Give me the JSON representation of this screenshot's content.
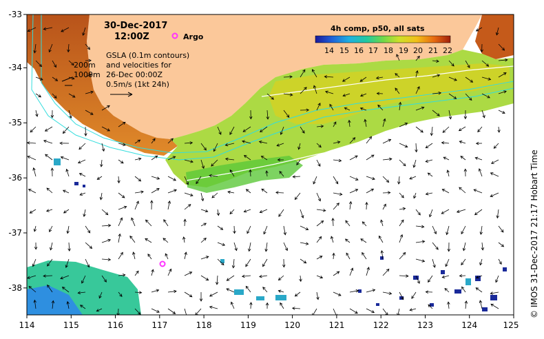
{
  "map": {
    "date": "30-Dec-2017",
    "time": "12:00Z",
    "argo_label": "Argo",
    "gsla_note": [
      "GSLA (0.1m contours)",
      "and velocities for",
      "26-Dec 00:00Z",
      "0.5m/s (1kt 24h)"
    ],
    "depth_labels": [
      "200m",
      "1000m"
    ],
    "colorbar": {
      "title": "4h comp, p50, all sats",
      "ticks": [
        "14",
        "15",
        "16",
        "17",
        "18",
        "19",
        "20",
        "21",
        "22"
      ]
    },
    "x_ticks": [
      "114",
      "115",
      "116",
      "117",
      "118",
      "119",
      "120",
      "121",
      "122",
      "123",
      "124",
      "125"
    ],
    "y_ticks": [
      "-33",
      "-34",
      "-35",
      "-36",
      "-37",
      "-38"
    ],
    "credit": "© IMOS 31-Dec-2017 21:17 Hobart Time",
    "argo_position": {
      "lon": 117.05,
      "lat": -37.6
    },
    "colors": {
      "land": "#fbc89a",
      "argo": "#ff33ff",
      "contour_depth": "#33dddd",
      "vector": "#000000"
    }
  }
}
